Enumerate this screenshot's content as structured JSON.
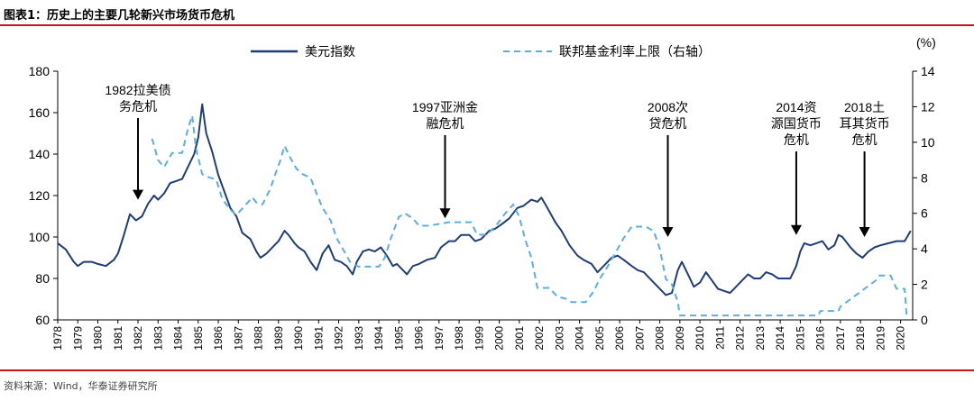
{
  "figure_title": "图表1：历史上的主要几轮新兴市场货币危机",
  "source": "资料来源：Wind，华泰证券研究所",
  "colors": {
    "dxy": "#1f3d7a",
    "fed": "#5aaee6",
    "rule": "#c0171d"
  },
  "chart_data": {
    "type": "line",
    "y2_unit": "(%)",
    "ylim": [
      60,
      180
    ],
    "yticks": [
      60,
      80,
      100,
      120,
      140,
      160,
      180
    ],
    "y2lim": [
      0,
      14
    ],
    "y2ticks": [
      0,
      2,
      4,
      6,
      8,
      10,
      12,
      14
    ],
    "xlim": [
      1978,
      2020.6
    ],
    "x_tick_labels": [
      "1978",
      "1979",
      "1980",
      "1981",
      "1982",
      "1983",
      "1984",
      "1985",
      "1986",
      "1987",
      "1988",
      "1989",
      "1990",
      "1991",
      "1992",
      "1993",
      "1994",
      "1995",
      "1996",
      "1997",
      "1998",
      "1999",
      "2000",
      "2001",
      "2002",
      "2003",
      "2004",
      "2005",
      "2006",
      "2007",
      "2008",
      "2009",
      "2010",
      "2011",
      "2012",
      "2013",
      "2014",
      "2015",
      "2016",
      "2017",
      "2018",
      "2019",
      "2020"
    ],
    "legend_position": "top",
    "grid": false,
    "series": [
      {
        "name": "美元指数",
        "axis": "left",
        "style": "solid",
        "points": [
          [
            1978.0,
            97
          ],
          [
            1978.4,
            94
          ],
          [
            1978.8,
            88
          ],
          [
            1979.0,
            86
          ],
          [
            1979.3,
            88
          ],
          [
            1979.7,
            88
          ],
          [
            1980.0,
            87
          ],
          [
            1980.4,
            86
          ],
          [
            1980.8,
            89
          ],
          [
            1981.0,
            92
          ],
          [
            1981.3,
            101
          ],
          [
            1981.6,
            111
          ],
          [
            1981.9,
            108
          ],
          [
            1982.2,
            110
          ],
          [
            1982.5,
            116
          ],
          [
            1982.8,
            120
          ],
          [
            1983.0,
            118
          ],
          [
            1983.3,
            121
          ],
          [
            1983.6,
            126
          ],
          [
            1983.9,
            127
          ],
          [
            1984.2,
            128
          ],
          [
            1984.5,
            134
          ],
          [
            1984.8,
            140
          ],
          [
            1985.0,
            148
          ],
          [
            1985.2,
            164
          ],
          [
            1985.4,
            150
          ],
          [
            1985.7,
            141
          ],
          [
            1986.0,
            130
          ],
          [
            1986.3,
            122
          ],
          [
            1986.6,
            114
          ],
          [
            1986.9,
            110
          ],
          [
            1987.2,
            102
          ],
          [
            1987.6,
            99
          ],
          [
            1987.9,
            93
          ],
          [
            1988.1,
            90
          ],
          [
            1988.4,
            92
          ],
          [
            1988.8,
            96
          ],
          [
            1989.0,
            98
          ],
          [
            1989.3,
            103
          ],
          [
            1989.5,
            101
          ],
          [
            1989.8,
            97
          ],
          [
            1990.0,
            95
          ],
          [
            1990.3,
            93
          ],
          [
            1990.6,
            88
          ],
          [
            1990.9,
            84
          ],
          [
            1991.2,
            92
          ],
          [
            1991.5,
            96
          ],
          [
            1991.8,
            89
          ],
          [
            1992.1,
            88
          ],
          [
            1992.4,
            86
          ],
          [
            1992.7,
            82
          ],
          [
            1992.9,
            88
          ],
          [
            1993.2,
            93
          ],
          [
            1993.5,
            94
          ],
          [
            1993.8,
            93
          ],
          [
            1994.1,
            95
          ],
          [
            1994.4,
            91
          ],
          [
            1994.7,
            86
          ],
          [
            1994.9,
            87
          ],
          [
            1995.2,
            84
          ],
          [
            1995.4,
            82
          ],
          [
            1995.7,
            86
          ],
          [
            1996.0,
            87
          ],
          [
            1996.4,
            89
          ],
          [
            1996.8,
            90
          ],
          [
            1997.1,
            95
          ],
          [
            1997.5,
            98
          ],
          [
            1997.8,
            98
          ],
          [
            1998.1,
            101
          ],
          [
            1998.5,
            101
          ],
          [
            1998.8,
            98
          ],
          [
            1999.1,
            99
          ],
          [
            1999.5,
            103
          ],
          [
            1999.8,
            104
          ],
          [
            2000.1,
            106
          ],
          [
            2000.5,
            109
          ],
          [
            2000.9,
            114
          ],
          [
            2001.2,
            115
          ],
          [
            2001.6,
            118
          ],
          [
            2001.9,
            117
          ],
          [
            2002.1,
            119
          ],
          [
            2002.4,
            114
          ],
          [
            2002.8,
            107
          ],
          [
            2003.1,
            103
          ],
          [
            2003.5,
            96
          ],
          [
            2003.9,
            91
          ],
          [
            2004.2,
            89
          ],
          [
            2004.6,
            87
          ],
          [
            2004.9,
            83
          ],
          [
            2005.2,
            86
          ],
          [
            2005.6,
            90
          ],
          [
            2005.9,
            91
          ],
          [
            2006.2,
            89
          ],
          [
            2006.6,
            86
          ],
          [
            2006.9,
            84
          ],
          [
            2007.2,
            83
          ],
          [
            2007.6,
            79
          ],
          [
            2007.9,
            76
          ],
          [
            2008.3,
            72
          ],
          [
            2008.6,
            73
          ],
          [
            2008.9,
            84
          ],
          [
            2009.1,
            88
          ],
          [
            2009.4,
            82
          ],
          [
            2009.7,
            76
          ],
          [
            2010.0,
            78
          ],
          [
            2010.3,
            83
          ],
          [
            2010.6,
            79
          ],
          [
            2010.9,
            75
          ],
          [
            2011.2,
            74
          ],
          [
            2011.5,
            73
          ],
          [
            2011.8,
            76
          ],
          [
            2012.1,
            79
          ],
          [
            2012.4,
            82
          ],
          [
            2012.7,
            80
          ],
          [
            2013.0,
            80
          ],
          [
            2013.3,
            83
          ],
          [
            2013.6,
            82
          ],
          [
            2013.9,
            80
          ],
          [
            2014.2,
            80
          ],
          [
            2014.5,
            80
          ],
          [
            2014.8,
            86
          ],
          [
            2015.0,
            93
          ],
          [
            2015.2,
            97
          ],
          [
            2015.5,
            96
          ],
          [
            2015.8,
            97
          ],
          [
            2016.1,
            98
          ],
          [
            2016.4,
            94
          ],
          [
            2016.7,
            96
          ],
          [
            2016.9,
            101
          ],
          [
            2017.1,
            100
          ],
          [
            2017.5,
            95
          ],
          [
            2017.8,
            92
          ],
          [
            2018.1,
            90
          ],
          [
            2018.4,
            93
          ],
          [
            2018.7,
            95
          ],
          [
            2019.0,
            96
          ],
          [
            2019.4,
            97
          ],
          [
            2019.8,
            98
          ],
          [
            2020.2,
            98
          ],
          [
            2020.5,
            103
          ]
        ]
      },
      {
        "name": "联邦基金利率上限（右轴）",
        "axis": "right",
        "style": "dashed",
        "points": [
          [
            1982.7,
            10.2
          ],
          [
            1983.0,
            9.0
          ],
          [
            1983.3,
            8.6
          ],
          [
            1983.7,
            9.4
          ],
          [
            1984.2,
            9.4
          ],
          [
            1984.5,
            10.8
          ],
          [
            1984.7,
            11.5
          ],
          [
            1984.9,
            9.6
          ],
          [
            1985.2,
            8.2
          ],
          [
            1985.6,
            8.0
          ],
          [
            1985.9,
            7.9
          ],
          [
            1986.2,
            6.8
          ],
          [
            1986.6,
            6.2
          ],
          [
            1986.9,
            5.9
          ],
          [
            1987.3,
            6.4
          ],
          [
            1987.7,
            6.9
          ],
          [
            1987.9,
            6.6
          ],
          [
            1988.2,
            6.5
          ],
          [
            1988.6,
            7.4
          ],
          [
            1988.9,
            8.4
          ],
          [
            1989.1,
            9.0
          ],
          [
            1989.3,
            9.8
          ],
          [
            1989.6,
            9.1
          ],
          [
            1989.9,
            8.5
          ],
          [
            1990.2,
            8.2
          ],
          [
            1990.6,
            8.0
          ],
          [
            1990.9,
            7.1
          ],
          [
            1991.2,
            6.3
          ],
          [
            1991.6,
            5.6
          ],
          [
            1991.9,
            4.6
          ],
          [
            1992.2,
            4.0
          ],
          [
            1992.6,
            3.2
          ],
          [
            1993.0,
            3.0
          ],
          [
            1993.5,
            3.0
          ],
          [
            1994.0,
            3.0
          ],
          [
            1994.3,
            3.5
          ],
          [
            1994.6,
            4.6
          ],
          [
            1995.0,
            5.8
          ],
          [
            1995.3,
            6.0
          ],
          [
            1995.7,
            5.7
          ],
          [
            1996.0,
            5.3
          ],
          [
            1996.5,
            5.3
          ],
          [
            1997.0,
            5.4
          ],
          [
            1997.5,
            5.5
          ],
          [
            1998.0,
            5.5
          ],
          [
            1998.6,
            5.5
          ],
          [
            1998.9,
            4.8
          ],
          [
            1999.4,
            4.8
          ],
          [
            1999.9,
            5.4
          ],
          [
            2000.3,
            6.0
          ],
          [
            2000.7,
            6.5
          ],
          [
            2001.0,
            5.8
          ],
          [
            2001.3,
            4.5
          ],
          [
            2001.6,
            3.5
          ],
          [
            2001.9,
            1.8
          ],
          [
            2002.5,
            1.8
          ],
          [
            2002.9,
            1.3
          ],
          [
            2003.3,
            1.2
          ],
          [
            2003.6,
            1.0
          ],
          [
            2004.3,
            1.0
          ],
          [
            2004.7,
            1.6
          ],
          [
            2005.0,
            2.3
          ],
          [
            2005.4,
            3.0
          ],
          [
            2005.8,
            3.8
          ],
          [
            2006.2,
            4.6
          ],
          [
            2006.6,
            5.25
          ],
          [
            2007.3,
            5.25
          ],
          [
            2007.7,
            5.0
          ],
          [
            2008.0,
            4.0
          ],
          [
            2008.3,
            2.3
          ],
          [
            2008.6,
            2.0
          ],
          [
            2008.9,
            1.0
          ],
          [
            2009.0,
            0.25
          ],
          [
            2012.0,
            0.25
          ],
          [
            2015.0,
            0.25
          ],
          [
            2015.9,
            0.25
          ],
          [
            2016.0,
            0.5
          ],
          [
            2016.9,
            0.5
          ],
          [
            2017.0,
            0.75
          ],
          [
            2017.3,
            1.0
          ],
          [
            2017.6,
            1.25
          ],
          [
            2017.9,
            1.5
          ],
          [
            2018.2,
            1.75
          ],
          [
            2018.5,
            2.0
          ],
          [
            2018.8,
            2.25
          ],
          [
            2018.95,
            2.5
          ],
          [
            2019.5,
            2.5
          ],
          [
            2019.6,
            2.25
          ],
          [
            2019.8,
            1.75
          ],
          [
            2020.2,
            1.75
          ],
          [
            2020.3,
            0.25
          ]
        ]
      }
    ],
    "annotations": [
      {
        "lines": [
          "1982拉美债",
          "务危机"
        ],
        "x": 1982.0,
        "y": 118
      },
      {
        "lines": [
          "1997亚洲金",
          "融危机"
        ],
        "x": 1997.3,
        "y": 109
      },
      {
        "lines": [
          "2008次",
          "贷危机"
        ],
        "x": 2008.4,
        "y": 100
      },
      {
        "lines": [
          "2014资",
          "源国货币",
          "危机"
        ],
        "x": 2014.8,
        "y": 101
      },
      {
        "lines": [
          "2018土",
          "耳其货币",
          "危机"
        ],
        "x": 2018.2,
        "y": 100
      }
    ]
  }
}
